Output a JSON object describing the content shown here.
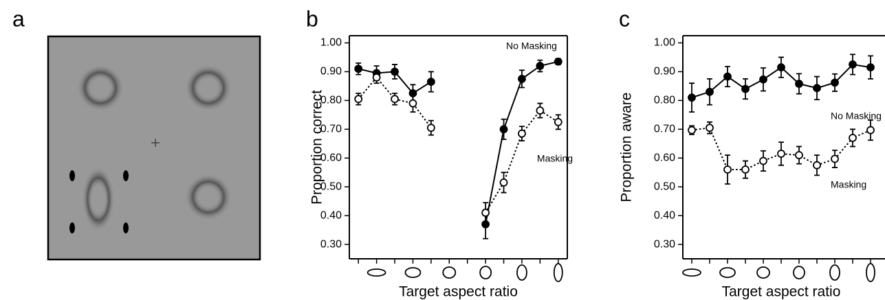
{
  "panel_a": {
    "label": "a"
  },
  "chart_data": [
    {
      "type": "line",
      "panel_label": "b",
      "ylabel": "Proportion correct",
      "xlabel": "Target aspect ratio",
      "categories": [
        null,
        null,
        null,
        null,
        null,
        null,
        null,
        null,
        null,
        null,
        null,
        null
      ],
      "ylim": [
        0.25,
        1.025
      ],
      "yticks": [
        {
          "value": 0.3,
          "label": "0.30"
        },
        {
          "value": 0.4,
          "label": "0.40"
        },
        {
          "value": 0.5,
          "label": "0.50"
        },
        {
          "value": 0.6,
          "label": "0.60"
        },
        {
          "value": 0.7,
          "label": "0.70"
        },
        {
          "value": 0.8,
          "label": "0.80"
        },
        {
          "value": 0.9,
          "label": "0.90"
        },
        {
          "value": 1.0,
          "label": "1.00"
        }
      ],
      "series": [
        {
          "name": "No Masking",
          "color": "#000000",
          "marker": "filled",
          "linestyle": "solid",
          "values": [
            0.91,
            0.895,
            0.9,
            0.825,
            0.865,
            null,
            null,
            0.37,
            0.7,
            0.875,
            0.92,
            0.935
          ],
          "errors": [
            0.02,
            0.025,
            0.025,
            0.03,
            0.035,
            null,
            null,
            0.05,
            0.035,
            0.03,
            0.02,
            0.01
          ]
        },
        {
          "name": "Masking",
          "color": "#000000",
          "marker": "open",
          "linestyle": "dotted",
          "values": [
            0.805,
            0.88,
            0.805,
            0.79,
            0.705,
            null,
            null,
            0.41,
            0.515,
            0.685,
            0.765,
            0.725
          ],
          "errors": [
            0.02,
            0.02,
            0.02,
            0.03,
            0.025,
            null,
            null,
            0.035,
            0.035,
            0.025,
            0.025,
            0.025
          ]
        }
      ]
    },
    {
      "type": "line",
      "panel_label": "c",
      "ylabel": "Proportion aware",
      "xlabel": "Target aspect ratio",
      "categories": [
        null,
        null,
        null,
        null,
        null,
        null,
        null,
        null,
        null,
        null,
        null
      ],
      "ylim": [
        0.25,
        1.025
      ],
      "yticks": [
        {
          "value": 0.3,
          "label": "0.30"
        },
        {
          "value": 0.4,
          "label": "0.40"
        },
        {
          "value": 0.5,
          "label": "0.50"
        },
        {
          "value": 0.6,
          "label": "0.60"
        },
        {
          "value": 0.7,
          "label": "0.70"
        },
        {
          "value": 0.8,
          "label": "0.80"
        },
        {
          "value": 0.9,
          "label": "0.90"
        },
        {
          "value": 1.0,
          "label": "1.00"
        }
      ],
      "series": [
        {
          "name": "No Masking",
          "color": "#000000",
          "marker": "filled",
          "linestyle": "solid",
          "values": [
            0.81,
            0.83,
            0.883,
            0.84,
            0.873,
            0.915,
            0.858,
            0.843,
            0.862,
            0.925,
            0.915
          ],
          "errors": [
            0.05,
            0.045,
            0.035,
            0.035,
            0.04,
            0.035,
            0.035,
            0.04,
            0.03,
            0.035,
            0.04
          ]
        },
        {
          "name": "Masking",
          "color": "#000000",
          "marker": "open",
          "linestyle": "dotted",
          "values": [
            0.697,
            0.705,
            0.56,
            0.56,
            0.59,
            0.615,
            0.61,
            0.575,
            0.597,
            0.67,
            0.697
          ],
          "errors": [
            0.015,
            0.02,
            0.05,
            0.03,
            0.035,
            0.04,
            0.03,
            0.035,
            0.03,
            0.03,
            0.035
          ]
        }
      ]
    }
  ]
}
